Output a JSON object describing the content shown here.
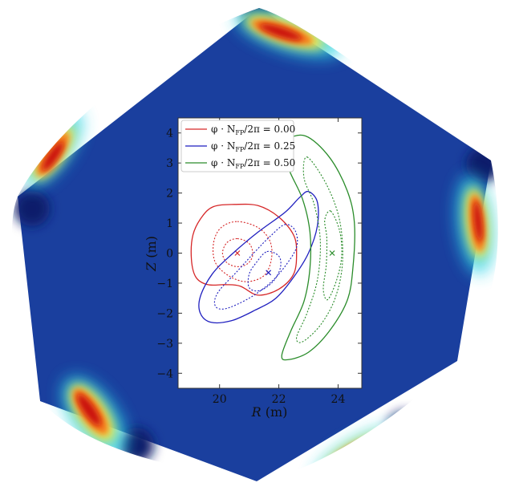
{
  "chart_data": [
    {
      "type": "surface-map",
      "colormap": "jet",
      "grid": false
    },
    {
      "type": "line",
      "xlabel_var": "R",
      "xlabel_unit": "(m)",
      "ylabel_var": "Z",
      "ylabel_unit": "(m)",
      "xlim": [
        18.6,
        24.8
      ],
      "ylim": [
        -4.5,
        4.5
      ],
      "xticks": [
        20,
        22,
        24
      ],
      "yticks": [
        4,
        3,
        2,
        1,
        0,
        -1,
        -2,
        -3,
        -4
      ],
      "legend_position": "top-left",
      "grid": false,
      "series": [
        {
          "name": "φ · N_FP/2π = 0.00",
          "legend_parts": [
            "φ · N",
            "FP",
            "/2π = 0.00"
          ],
          "color": "#d62728",
          "axis": [
            20.6,
            0.0
          ],
          "outer": [
            [
              20.5,
              1.62
            ],
            [
              21.3,
              1.58
            ],
            [
              22.0,
              1.2
            ],
            [
              22.5,
              0.6
            ],
            [
              22.6,
              0.0
            ],
            [
              22.5,
              -0.7
            ],
            [
              22.0,
              -1.2
            ],
            [
              21.3,
              -1.4
            ],
            [
              20.7,
              -1.1
            ],
            [
              20.2,
              -1.05
            ],
            [
              19.6,
              -1.05
            ],
            [
              19.2,
              -0.8
            ],
            [
              19.05,
              -0.2
            ],
            [
              19.1,
              0.6
            ],
            [
              19.4,
              1.2
            ],
            [
              19.8,
              1.55
            ]
          ],
          "middle": [
            [
              20.6,
              1.05
            ],
            [
              21.3,
              0.85
            ],
            [
              21.7,
              0.4
            ],
            [
              21.75,
              -0.2
            ],
            [
              21.5,
              -0.75
            ],
            [
              20.9,
              -0.95
            ],
            [
              20.3,
              -0.75
            ],
            [
              19.85,
              -0.3
            ],
            [
              19.8,
              0.35
            ],
            [
              20.05,
              0.85
            ]
          ],
          "inner": [
            [
              20.6,
              0.48
            ],
            [
              21.0,
              0.32
            ],
            [
              21.12,
              -0.05
            ],
            [
              20.95,
              -0.35
            ],
            [
              20.6,
              -0.45
            ],
            [
              20.25,
              -0.32
            ],
            [
              20.1,
              0.0
            ],
            [
              20.25,
              0.35
            ]
          ],
          "axis_x": [
            20.6
          ],
          "axis_y": [
            0.0
          ]
        },
        {
          "name": "φ · N_FP/2π = 0.25",
          "legend_parts": [
            "φ · N",
            "FP",
            "/2π = 0.25"
          ],
          "color": "#1f1fbf",
          "axis": [
            21.65,
            -0.65
          ],
          "outer": [
            [
              23.0,
              2.05
            ],
            [
              23.3,
              1.7
            ],
            [
              23.3,
              0.9
            ],
            [
              23.0,
              0.0
            ],
            [
              22.5,
              -0.8
            ],
            [
              21.9,
              -1.5
            ],
            [
              21.2,
              -1.9
            ],
            [
              20.4,
              -2.25
            ],
            [
              19.7,
              -2.3
            ],
            [
              19.35,
              -2.0
            ],
            [
              19.35,
              -1.45
            ],
            [
              19.75,
              -0.7
            ],
            [
              20.4,
              -0.05
            ],
            [
              21.3,
              0.7
            ],
            [
              22.2,
              1.35
            ],
            [
              22.7,
              1.85
            ]
          ],
          "middle": [
            [
              22.2,
              0.95
            ],
            [
              22.55,
              0.75
            ],
            [
              22.6,
              0.2
            ],
            [
              22.2,
              -0.45
            ],
            [
              21.7,
              -1.0
            ],
            [
              21.0,
              -1.5
            ],
            [
              20.2,
              -1.85
            ],
            [
              19.85,
              -1.75
            ],
            [
              19.95,
              -1.3
            ],
            [
              20.6,
              -0.6
            ],
            [
              21.2,
              0.05
            ],
            [
              21.7,
              0.55
            ]
          ],
          "inner": [
            [
              21.6,
              0.05
            ],
            [
              22.0,
              -0.1
            ],
            [
              22.05,
              -0.5
            ],
            [
              21.8,
              -0.95
            ],
            [
              21.35,
              -1.25
            ],
            [
              21.0,
              -1.15
            ],
            [
              21.0,
              -0.7
            ],
            [
              21.25,
              -0.3
            ]
          ],
          "axis_x": [
            21.65
          ],
          "axis_y": [
            -0.65
          ]
        },
        {
          "name": "φ · N_FP/2π = 0.50",
          "legend_parts": [
            "φ · N",
            "FP",
            "/2π = 0.50"
          ],
          "color": "#2a8c2a",
          "axis": [
            23.8,
            0.0
          ],
          "outer": [
            [
              22.9,
              3.9
            ],
            [
              23.7,
              3.2
            ],
            [
              24.3,
              2.1
            ],
            [
              24.55,
              1.0
            ],
            [
              24.5,
              -0.5
            ],
            [
              24.3,
              -1.6
            ],
            [
              23.7,
              -2.6
            ],
            [
              23.0,
              -3.3
            ],
            [
              22.3,
              -3.55
            ],
            [
              22.1,
              -3.4
            ],
            [
              22.4,
              -2.6
            ],
            [
              22.85,
              -1.6
            ],
            [
              23.05,
              -0.5
            ],
            [
              23.05,
              0.7
            ],
            [
              22.8,
              1.8
            ],
            [
              22.3,
              2.9
            ],
            [
              22.25,
              3.7
            ]
          ],
          "middle": [
            [
              22.95,
              3.2
            ],
            [
              23.6,
              2.3
            ],
            [
              24.05,
              1.1
            ],
            [
              24.15,
              -0.3
            ],
            [
              23.9,
              -1.5
            ],
            [
              23.4,
              -2.4
            ],
            [
              22.8,
              -2.95
            ],
            [
              22.6,
              -2.8
            ],
            [
              22.95,
              -2.0
            ],
            [
              23.3,
              -0.9
            ],
            [
              23.4,
              0.4
            ],
            [
              23.2,
              1.6
            ],
            [
              22.85,
              2.5
            ]
          ],
          "inner": [
            [
              23.75,
              1.4
            ],
            [
              24.05,
              0.75
            ],
            [
              24.12,
              -0.1
            ],
            [
              23.95,
              -0.9
            ],
            [
              23.65,
              -1.55
            ],
            [
              23.5,
              -1.2
            ],
            [
              23.6,
              -0.4
            ],
            [
              23.62,
              0.5
            ],
            [
              23.55,
              1.1
            ]
          ],
          "axis_x": [
            23.8
          ],
          "axis_y": [
            0.0
          ]
        }
      ]
    }
  ]
}
